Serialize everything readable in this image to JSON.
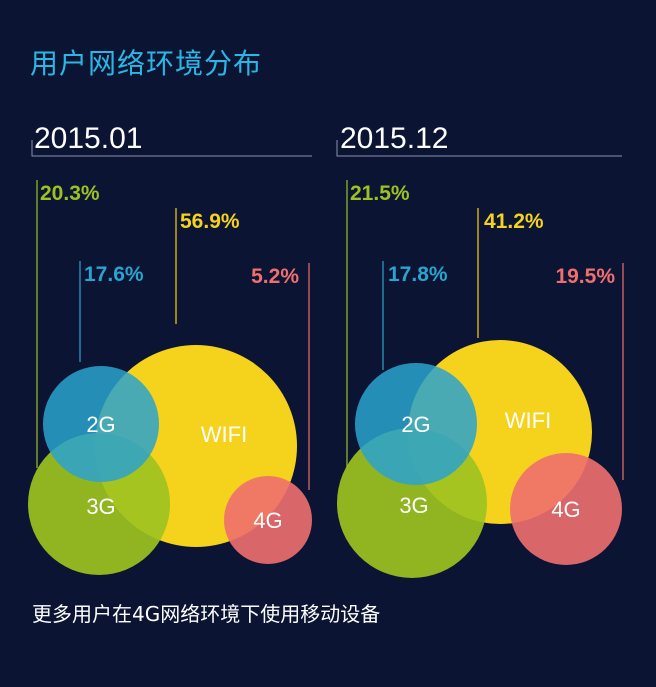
{
  "title": "用户网络环境分布",
  "footer": "更多用户在4G网络环境下使用移动设备",
  "colors": {
    "background": "#0c1433",
    "title": "#2ab7e6",
    "2G": "#2aa3cf",
    "3G": "#9dc21f",
    "WIFI": "#f5d21c",
    "4G": "#ef6f6f",
    "line": "#8a93a8"
  },
  "chart_data": [
    {
      "type": "bubble",
      "period": "2015.01",
      "series": [
        {
          "name": "3G",
          "value": 20.3,
          "label": "20.3%"
        },
        {
          "name": "WIFI",
          "value": 56.9,
          "label": "56.9%"
        },
        {
          "name": "2G",
          "value": 17.6,
          "label": "17.6%"
        },
        {
          "name": "4G",
          "value": 5.2,
          "label": "5.2%"
        }
      ]
    },
    {
      "type": "bubble",
      "period": "2015.12",
      "series": [
        {
          "name": "3G",
          "value": 21.5,
          "label": "21.5%"
        },
        {
          "name": "WIFI",
          "value": 41.2,
          "label": "41.2%"
        },
        {
          "name": "2G",
          "value": 17.8,
          "label": "17.8%"
        },
        {
          "name": "4G",
          "value": 19.5,
          "label": "19.5%"
        }
      ]
    }
  ]
}
